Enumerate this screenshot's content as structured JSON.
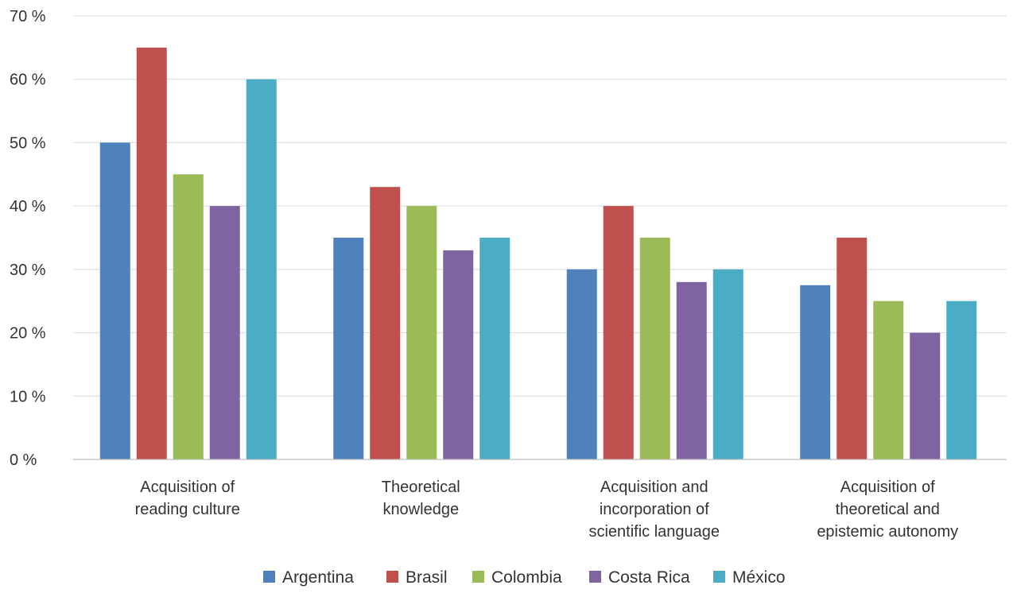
{
  "chart_data": {
    "type": "bar",
    "title": "",
    "xlabel": "",
    "ylabel": "",
    "ylim": [
      0,
      70
    ],
    "y_ticks": [
      0,
      10,
      20,
      30,
      40,
      50,
      60,
      70
    ],
    "y_tick_labels": [
      "0 %",
      "10 %",
      "20 %",
      "30 %",
      "40 %",
      "50 %",
      "60 %",
      "70 %"
    ],
    "grid": true,
    "legend_position": "bottom",
    "categories": [
      [
        "Acquisition of",
        "reading culture"
      ],
      [
        "Theoretical",
        "knowledge"
      ],
      [
        "Acquisition and",
        "incorporation of",
        "scientific language"
      ],
      [
        "Acquisition of",
        "theoretical and",
        "epistemic autonomy"
      ]
    ],
    "series": [
      {
        "name": "Argentina",
        "color": "#4f81bd",
        "values": [
          50,
          35,
          30,
          27.5
        ]
      },
      {
        "name": "Brasil",
        "color": "#c0504d",
        "values": [
          65,
          43,
          40,
          35
        ]
      },
      {
        "name": "Colombia",
        "color": "#9bbb59",
        "values": [
          45,
          40,
          35,
          25
        ]
      },
      {
        "name": "Costa Rica",
        "color": "#8064a2",
        "values": [
          40,
          33,
          28,
          20
        ]
      },
      {
        "name": "México",
        "color": "#4bacc6",
        "values": [
          60,
          35,
          30,
          25
        ]
      }
    ]
  }
}
